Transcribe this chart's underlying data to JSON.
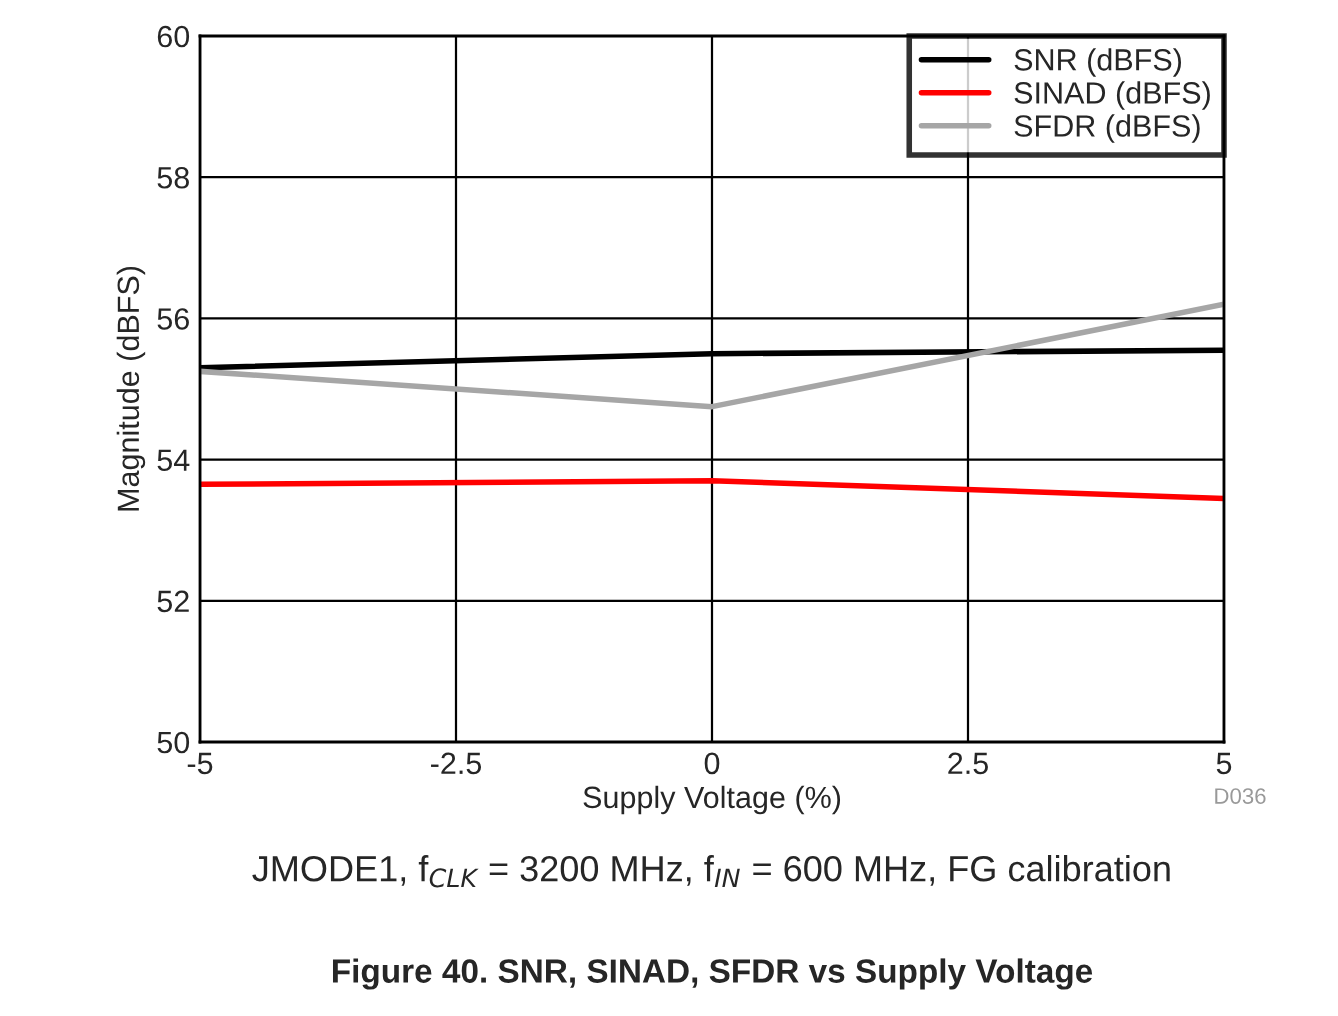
{
  "chart_data": {
    "type": "line",
    "title": "Figure 40. SNR, SINAD, SFDR vs Supply Voltage",
    "xlabel": "Supply Voltage (%)",
    "ylabel": "Magnitude (dBFS)",
    "x": [
      -5,
      0,
      5
    ],
    "series": [
      {
        "name": "SNR (dBFS)",
        "color": "#000000",
        "values": [
          55.3,
          55.5,
          55.55
        ]
      },
      {
        "name": "SINAD (dBFS)",
        "color": "#ff0000",
        "values": [
          53.65,
          53.7,
          53.45
        ]
      },
      {
        "name": "SFDR (dBFS)",
        "color": "#a6a6a6",
        "values": [
          55.25,
          54.75,
          56.2
        ]
      }
    ],
    "xlim": [
      -5,
      5
    ],
    "xticks": [
      -5,
      -2.5,
      0,
      2.5,
      5
    ],
    "ylim": [
      50,
      60
    ],
    "yticks": [
      50,
      52,
      54,
      56,
      58,
      60
    ],
    "grid": true,
    "legend": "top right",
    "line_style": "solid",
    "annotations": [
      "D036",
      "JMODE1, f$_{CLK}$ = 3200 MHz, f$_{IN}$ = 600 MHz, FG calibration"
    ]
  }
}
